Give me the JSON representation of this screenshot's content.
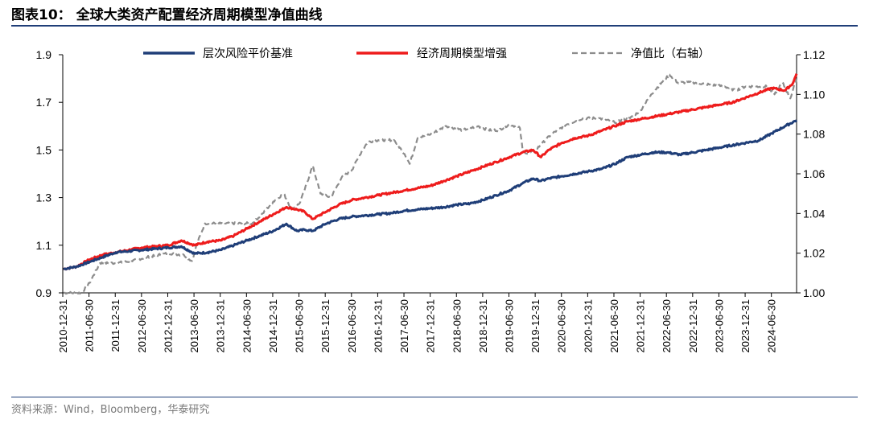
{
  "header": {
    "title": "图表10：  全球大类资产配置经济周期模型净值曲线"
  },
  "footer": {
    "source": "资料来源：Wind，Bloomberg，华泰研究"
  },
  "chart_data": {
    "type": "line",
    "title": "全球大类资产配置经济周期模型净值曲线",
    "left_axis": {
      "min": 0.9,
      "max": 1.9,
      "ticks": [
        "1.9",
        "1.7",
        "1.5",
        "1.3",
        "1.1",
        "0.9"
      ],
      "values": [
        1.9,
        1.7,
        1.5,
        1.3,
        1.1,
        0.9
      ]
    },
    "right_axis": {
      "min": 1.0,
      "max": 1.12,
      "ticks": [
        "1.12",
        "1.10",
        "1.08",
        "1.06",
        "1.04",
        "1.02",
        "1.00"
      ],
      "values": [
        1.12,
        1.1,
        1.08,
        1.06,
        1.04,
        1.02,
        1.0
      ]
    },
    "x_start": 2010.99,
    "x_end": 2024.97,
    "x_tick_labels": [
      "2010-12-31",
      "2011-06-30",
      "2011-12-31",
      "2012-06-30",
      "2012-12-31",
      "2013-06-30",
      "2013-12-31",
      "2014-06-30",
      "2014-12-31",
      "2015-06-30",
      "2015-12-31",
      "2016-06-30",
      "2016-12-31",
      "2017-06-30",
      "2017-12-31",
      "2018-06-30",
      "2018-12-31",
      "2019-06-30",
      "2019-12-31",
      "2020-06-30",
      "2020-12-31",
      "2021-06-30",
      "2021-12-31",
      "2022-06-30",
      "2022-12-31",
      "2023-06-30",
      "2023-12-31",
      "2024-06-30"
    ],
    "legend_position": "top",
    "series": [
      {
        "name": "层次风险平价基准",
        "color": "#1f3e78",
        "axis": "left",
        "style": "solid",
        "t": [
          2011.0,
          2011.25,
          2011.5,
          2011.75,
          2012.0,
          2012.25,
          2012.5,
          2012.75,
          2013.0,
          2013.25,
          2013.5,
          2013.75,
          2014.0,
          2014.25,
          2014.5,
          2014.75,
          2015.0,
          2015.25,
          2015.45,
          2015.6,
          2015.75,
          2016.0,
          2016.25,
          2016.5,
          2016.75,
          2017.0,
          2017.25,
          2017.5,
          2017.75,
          2018.0,
          2018.25,
          2018.5,
          2018.75,
          2019.0,
          2019.25,
          2019.5,
          2019.75,
          2019.95,
          2020.1,
          2020.25,
          2020.5,
          2020.75,
          2021.0,
          2021.25,
          2021.5,
          2021.75,
          2022.0,
          2022.25,
          2022.5,
          2022.75,
          2023.0,
          2023.25,
          2023.5,
          2023.75,
          2024.0,
          2024.25,
          2024.5,
          2024.75,
          2024.97
        ],
        "values": [
          1.0,
          1.01,
          1.03,
          1.05,
          1.07,
          1.075,
          1.08,
          1.085,
          1.09,
          1.095,
          1.065,
          1.07,
          1.08,
          1.1,
          1.12,
          1.14,
          1.16,
          1.19,
          1.16,
          1.165,
          1.16,
          1.19,
          1.21,
          1.22,
          1.225,
          1.23,
          1.235,
          1.245,
          1.25,
          1.255,
          1.26,
          1.27,
          1.275,
          1.29,
          1.31,
          1.33,
          1.36,
          1.38,
          1.37,
          1.38,
          1.39,
          1.4,
          1.41,
          1.42,
          1.44,
          1.47,
          1.48,
          1.49,
          1.49,
          1.48,
          1.49,
          1.5,
          1.51,
          1.52,
          1.53,
          1.54,
          1.57,
          1.6,
          1.625
        ]
      },
      {
        "name": "经济周期模型增强",
        "color": "#ee1c1c",
        "axis": "left",
        "style": "solid",
        "t": [
          2011.0,
          2011.25,
          2011.5,
          2011.75,
          2012.0,
          2012.25,
          2012.5,
          2012.75,
          2013.0,
          2013.25,
          2013.5,
          2013.75,
          2014.0,
          2014.25,
          2014.5,
          2014.75,
          2015.0,
          2015.25,
          2015.45,
          2015.6,
          2015.75,
          2016.0,
          2016.25,
          2016.5,
          2016.75,
          2017.0,
          2017.25,
          2017.5,
          2017.75,
          2018.0,
          2018.25,
          2018.5,
          2018.75,
          2019.0,
          2019.25,
          2019.5,
          2019.75,
          2019.95,
          2020.1,
          2020.25,
          2020.5,
          2020.75,
          2021.0,
          2021.25,
          2021.5,
          2021.75,
          2022.0,
          2022.25,
          2022.5,
          2022.75,
          2023.0,
          2023.25,
          2023.5,
          2023.75,
          2024.0,
          2024.25,
          2024.5,
          2024.75,
          2024.9,
          2024.97
        ],
        "values": [
          1.0,
          1.01,
          1.04,
          1.06,
          1.07,
          1.08,
          1.09,
          1.095,
          1.1,
          1.12,
          1.1,
          1.115,
          1.12,
          1.14,
          1.17,
          1.2,
          1.23,
          1.26,
          1.25,
          1.24,
          1.21,
          1.24,
          1.27,
          1.29,
          1.3,
          1.31,
          1.32,
          1.33,
          1.34,
          1.35,
          1.37,
          1.39,
          1.41,
          1.43,
          1.45,
          1.47,
          1.49,
          1.5,
          1.47,
          1.5,
          1.53,
          1.55,
          1.56,
          1.58,
          1.6,
          1.62,
          1.63,
          1.64,
          1.65,
          1.66,
          1.67,
          1.68,
          1.69,
          1.7,
          1.72,
          1.74,
          1.76,
          1.75,
          1.78,
          1.82
        ]
      },
      {
        "name": "净值比（右轴）",
        "color": "#8c8c8c",
        "axis": "right",
        "style": "dashed",
        "t": [
          2011.0,
          2011.2,
          2011.35,
          2011.5,
          2011.7,
          2012.0,
          2012.3,
          2012.6,
          2013.0,
          2013.3,
          2013.45,
          2013.55,
          2013.7,
          2014.0,
          2014.3,
          2014.6,
          2014.8,
          2015.0,
          2015.2,
          2015.35,
          2015.5,
          2015.6,
          2015.75,
          2015.9,
          2016.1,
          2016.3,
          2016.5,
          2016.7,
          2016.8,
          2017.0,
          2017.3,
          2017.5,
          2017.6,
          2017.75,
          2018.0,
          2018.3,
          2018.6,
          2018.9,
          2019.1,
          2019.3,
          2019.5,
          2019.7,
          2019.75,
          2019.85,
          2020.0,
          2020.3,
          2020.6,
          2020.9,
          2021.2,
          2021.5,
          2021.8,
          2022.0,
          2022.2,
          2022.4,
          2022.55,
          2022.7,
          2023.0,
          2023.3,
          2023.6,
          2023.8,
          2024.0,
          2024.2,
          2024.4,
          2024.55,
          2024.7,
          2024.85,
          2024.97
        ],
        "values": [
          1.0,
          1.0,
          1.0,
          1.005,
          1.015,
          1.015,
          1.016,
          1.018,
          1.02,
          1.019,
          1.016,
          1.025,
          1.035,
          1.035,
          1.035,
          1.035,
          1.04,
          1.046,
          1.05,
          1.042,
          1.045,
          1.052,
          1.064,
          1.05,
          1.048,
          1.058,
          1.062,
          1.072,
          1.076,
          1.077,
          1.077,
          1.07,
          1.065,
          1.078,
          1.08,
          1.084,
          1.082,
          1.084,
          1.082,
          1.082,
          1.085,
          1.083,
          1.072,
          1.07,
          1.072,
          1.08,
          1.085,
          1.088,
          1.088,
          1.086,
          1.088,
          1.092,
          1.1,
          1.106,
          1.11,
          1.106,
          1.106,
          1.105,
          1.104,
          1.102,
          1.104,
          1.104,
          1.104,
          1.1,
          1.106,
          1.098,
          1.108
        ]
      }
    ]
  }
}
